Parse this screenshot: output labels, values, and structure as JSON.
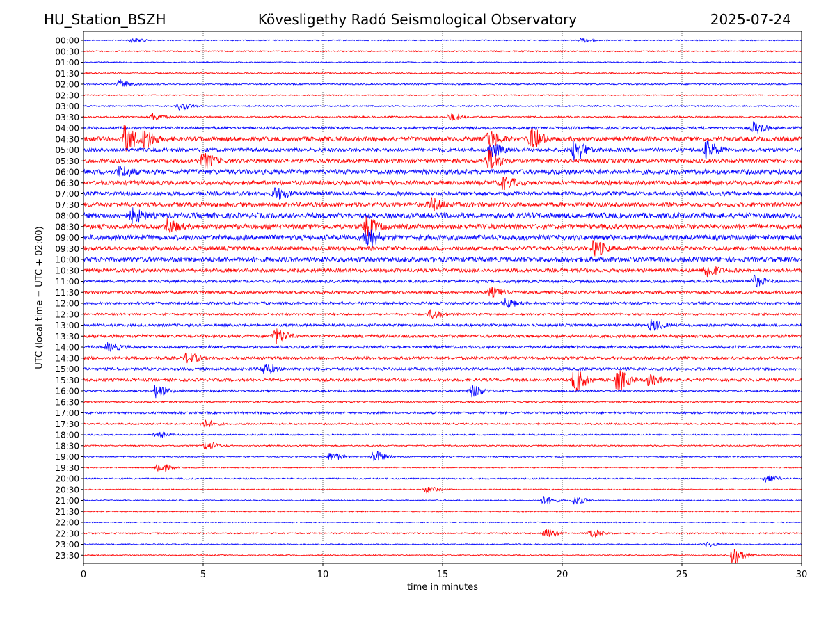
{
  "header": {
    "station": "HU_Station_BSZH",
    "title": "Kövesligethy Radó Seismological Observatory",
    "date": "2025-07-24"
  },
  "chart_data": {
    "type": "line",
    "title": "Kövesligethy Radó Seismological Observatory",
    "xlabel": "time in minutes",
    "ylabel": "UTC (local time = UTC + 02:00)",
    "xlim": [
      0,
      30
    ],
    "xticks": [
      "0",
      "5",
      "10",
      "15",
      "20",
      "25",
      "30"
    ],
    "xgrid_minutes": [
      5,
      10,
      15,
      20,
      25
    ],
    "row_labels": [
      "00:00",
      "00:30",
      "01:00",
      "01:30",
      "02:00",
      "02:30",
      "03:00",
      "03:30",
      "04:00",
      "04:30",
      "05:00",
      "05:30",
      "06:00",
      "06:30",
      "07:00",
      "07:30",
      "08:00",
      "08:30",
      "09:00",
      "09:30",
      "10:00",
      "10:30",
      "11:00",
      "11:30",
      "12:00",
      "12:30",
      "13:00",
      "13:30",
      "14:00",
      "14:30",
      "15:00",
      "15:30",
      "16:00",
      "16:30",
      "17:00",
      "17:30",
      "18:00",
      "18:30",
      "19:00",
      "19:30",
      "20:00",
      "20:30",
      "21:00",
      "21:30",
      "22:00",
      "22:30",
      "23:00",
      "23:30"
    ],
    "colors": [
      "#0000ff",
      "#ff0000"
    ],
    "series_noise_level": [
      0.8,
      0.9,
      0.8,
      0.9,
      1.0,
      0.8,
      1.0,
      1.2,
      2.0,
      3.0,
      2.5,
      3.0,
      3.5,
      3.0,
      3.0,
      3.0,
      4.0,
      3.5,
      3.5,
      3.0,
      3.5,
      2.5,
      2.0,
      2.0,
      1.8,
      1.5,
      1.8,
      2.2,
      2.0,
      2.0,
      2.0,
      2.0,
      1.5,
      1.2,
      1.5,
      1.2,
      1.0,
      0.9,
      1.0,
      0.8,
      1.0,
      0.8,
      0.9,
      0.8,
      0.7,
      1.0,
      0.8,
      0.8
    ],
    "events": [
      {
        "row": 0,
        "minute": 2.0,
        "amplitude": 3
      },
      {
        "row": 0,
        "minute": 20.8,
        "amplitude": 3
      },
      {
        "row": 4,
        "minute": 1.5,
        "amplitude": 6
      },
      {
        "row": 6,
        "minute": 4.0,
        "amplitude": 5
      },
      {
        "row": 7,
        "minute": 2.9,
        "amplitude": 5
      },
      {
        "row": 7,
        "minute": 15.3,
        "amplitude": 5
      },
      {
        "row": 8,
        "minute": 28.0,
        "amplitude": 8
      },
      {
        "row": 9,
        "minute": 1.7,
        "amplitude": 18
      },
      {
        "row": 9,
        "minute": 2.5,
        "amplitude": 14
      },
      {
        "row": 9,
        "minute": 16.9,
        "amplitude": 12
      },
      {
        "row": 9,
        "minute": 18.7,
        "amplitude": 14
      },
      {
        "row": 10,
        "minute": 17.0,
        "amplitude": 9
      },
      {
        "row": 10,
        "minute": 20.5,
        "amplitude": 14
      },
      {
        "row": 10,
        "minute": 26.0,
        "amplitude": 12
      },
      {
        "row": 11,
        "minute": 5.0,
        "amplitude": 10
      },
      {
        "row": 11,
        "minute": 16.9,
        "amplitude": 14
      },
      {
        "row": 12,
        "minute": 1.5,
        "amplitude": 7
      },
      {
        "row": 13,
        "minute": 17.5,
        "amplitude": 8
      },
      {
        "row": 14,
        "minute": 8.0,
        "amplitude": 7
      },
      {
        "row": 15,
        "minute": 14.5,
        "amplitude": 8
      },
      {
        "row": 16,
        "minute": 2.0,
        "amplitude": 8
      },
      {
        "row": 17,
        "minute": 3.5,
        "amplitude": 9
      },
      {
        "row": 17,
        "minute": 11.8,
        "amplitude": 12
      },
      {
        "row": 18,
        "minute": 11.8,
        "amplitude": 15
      },
      {
        "row": 19,
        "minute": 21.3,
        "amplitude": 10
      },
      {
        "row": 21,
        "minute": 26.0,
        "amplitude": 9
      },
      {
        "row": 22,
        "minute": 28.0,
        "amplitude": 7
      },
      {
        "row": 23,
        "minute": 17.0,
        "amplitude": 6
      },
      {
        "row": 24,
        "minute": 17.6,
        "amplitude": 6
      },
      {
        "row": 25,
        "minute": 14.5,
        "amplitude": 6
      },
      {
        "row": 26,
        "minute": 23.7,
        "amplitude": 7
      },
      {
        "row": 27,
        "minute": 8.0,
        "amplitude": 10
      },
      {
        "row": 28,
        "minute": 1.0,
        "amplitude": 5
      },
      {
        "row": 29,
        "minute": 4.3,
        "amplitude": 7
      },
      {
        "row": 30,
        "minute": 7.5,
        "amplitude": 7
      },
      {
        "row": 31,
        "minute": 20.5,
        "amplitude": 16
      },
      {
        "row": 31,
        "minute": 22.3,
        "amplitude": 15
      },
      {
        "row": 31,
        "minute": 23.6,
        "amplitude": 8
      },
      {
        "row": 32,
        "minute": 3.0,
        "amplitude": 9
      },
      {
        "row": 32,
        "minute": 16.2,
        "amplitude": 8
      },
      {
        "row": 35,
        "minute": 5.0,
        "amplitude": 5
      },
      {
        "row": 36,
        "minute": 3.0,
        "amplitude": 5
      },
      {
        "row": 37,
        "minute": 5.1,
        "amplitude": 6
      },
      {
        "row": 38,
        "minute": 10.3,
        "amplitude": 6
      },
      {
        "row": 38,
        "minute": 12.1,
        "amplitude": 8
      },
      {
        "row": 39,
        "minute": 3.1,
        "amplitude": 7
      },
      {
        "row": 40,
        "minute": 28.5,
        "amplitude": 5
      },
      {
        "row": 41,
        "minute": 14.3,
        "amplitude": 5
      },
      {
        "row": 42,
        "minute": 19.2,
        "amplitude": 6
      },
      {
        "row": 42,
        "minute": 20.5,
        "amplitude": 5
      },
      {
        "row": 45,
        "minute": 19.3,
        "amplitude": 6
      },
      {
        "row": 45,
        "minute": 21.2,
        "amplitude": 6
      },
      {
        "row": 46,
        "minute": 26.0,
        "amplitude": 3
      },
      {
        "row": 47,
        "minute": 27.1,
        "amplitude": 13
      }
    ]
  }
}
